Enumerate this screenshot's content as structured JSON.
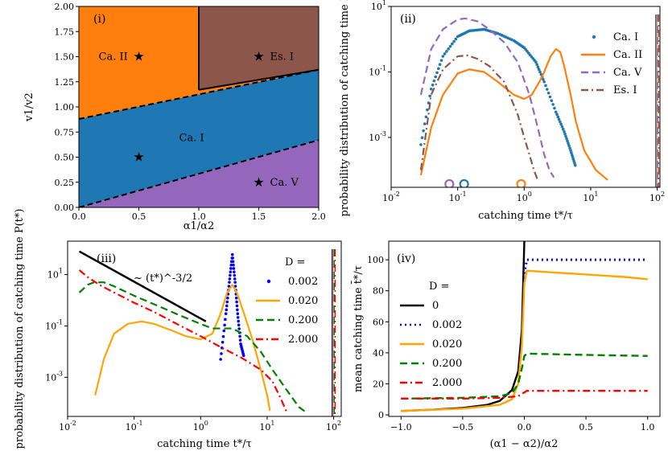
{
  "chart_data": [
    {
      "panel": "(i)",
      "type": "phase-diagram",
      "xlabel": "α1/α2",
      "ylabel": "v1/v2",
      "xlim": [
        0,
        2
      ],
      "ylim": [
        0,
        2
      ],
      "xticks": [
        "0.0",
        "0.5",
        "1.0",
        "1.5",
        "2.0"
      ],
      "yticks": [
        "0.00",
        "0.25",
        "0.50",
        "0.75",
        "1.00",
        "1.25",
        "1.50",
        "1.75",
        "2.00"
      ],
      "regions": [
        {
          "name": "Ca. II",
          "color": "#ff7f0e",
          "marker": [
            0.5,
            1.5
          ]
        },
        {
          "name": "Es. I",
          "color": "#8c564b",
          "marker": [
            1.5,
            1.5
          ]
        },
        {
          "name": "Ca. I",
          "color": "#1f77b4",
          "marker": [
            0.5,
            0.5
          ]
        },
        {
          "name": "Ca. V",
          "color": "#9467bd",
          "marker": [
            1.5,
            0.25
          ]
        }
      ],
      "boundaries": {
        "upper_dashed": [
          [
            0,
            0.88
          ],
          [
            2,
            1.37
          ]
        ],
        "lower_dashed": [
          [
            0,
            0
          ],
          [
            2,
            0.67
          ]
        ],
        "vertical_solid": [
          [
            1,
            1.17
          ],
          [
            1,
            2
          ]
        ],
        "es_lower_solid": [
          [
            1,
            1.17
          ],
          [
            2,
            1.37
          ]
        ]
      }
    },
    {
      "panel": "(ii)",
      "type": "line",
      "xlabel": "catching time t*/τ",
      "ylabel": "probability distribution of catching time P(t*)",
      "xscale": "log",
      "yscale": "log",
      "xlim": [
        0.01,
        110
      ],
      "ylim": [
        3e-05,
        10
      ],
      "xticks": [
        "10^-2",
        "10^-1",
        "10^0",
        "10^1",
        "10^2"
      ],
      "yticks": [
        "10^-3",
        "10^-1",
        "10^1"
      ],
      "series": [
        {
          "name": "Ca. I",
          "style": "dots",
          "color": "#1f77b4",
          "x": [
            0.028,
            0.04,
            0.06,
            0.1,
            0.15,
            0.25,
            0.4,
            0.7,
            1.0,
            1.5,
            2.0,
            3.0,
            4.0,
            5.0,
            6.0
          ],
          "y": [
            0.0006,
            0.03,
            0.3,
            1.2,
            1.8,
            2.0,
            1.5,
            0.9,
            0.55,
            0.2,
            0.05,
            0.006,
            0.0015,
            0.0004,
            0.00012
          ]
        },
        {
          "name": "Ca. II",
          "style": "solid",
          "color": "#ff7f0e",
          "x": [
            0.028,
            0.04,
            0.06,
            0.1,
            0.15,
            0.25,
            0.4,
            0.7,
            1.0,
            1.3,
            1.7,
            2.0,
            2.5,
            3.0,
            3.5,
            4.0,
            5.0,
            6.0,
            8.0,
            12.0,
            18.0
          ],
          "y": [
            7e-05,
            0.002,
            0.02,
            0.09,
            0.12,
            0.1,
            0.05,
            0.02,
            0.015,
            0.02,
            0.05,
            0.1,
            0.3,
            0.5,
            0.4,
            0.15,
            0.02,
            0.003,
            0.0004,
            0.0001,
            5e-05
          ]
        },
        {
          "name": "Ca. V",
          "style": "dashed",
          "color": "#9467bd",
          "x": [
            0.028,
            0.04,
            0.06,
            0.1,
            0.13,
            0.2,
            0.3,
            0.5,
            0.8,
            1.2,
            1.6,
            2.0,
            2.4,
            2.8
          ],
          "y": [
            0.02,
            0.5,
            2.0,
            4.0,
            4.3,
            3.5,
            2.0,
            0.8,
            0.2,
            0.02,
            0.002,
            0.0003,
            0.0001,
            6e-05
          ]
        },
        {
          "name": "Es. I",
          "style": "dashdot",
          "color": "#8c564b",
          "x": [
            0.028,
            0.04,
            0.06,
            0.1,
            0.14,
            0.2,
            0.3,
            0.5,
            0.8,
            1.0,
            1.2,
            1.4,
            1.6
          ],
          "y": [
            0.0001,
            0.02,
            0.12,
            0.3,
            0.32,
            0.25,
            0.15,
            0.05,
            0.005,
            0.001,
            0.0003,
            0.0001,
            5e-05
          ]
        }
      ],
      "circle_markers": [
        {
          "x": 0.075,
          "color": "#9467bd"
        },
        {
          "x": 0.125,
          "color": "#1f77b4"
        },
        {
          "x": 0.9,
          "color": "#ff7f0e"
        }
      ],
      "edge_x": 100
    },
    {
      "panel": "(iii)",
      "type": "line",
      "xlabel": "catching time t*/τ",
      "ylabel": "probability distribution of catching time P(t*)",
      "xscale": "log",
      "yscale": "log",
      "xlim": [
        0.01,
        130
      ],
      "ylim": [
        3e-05,
        200
      ],
      "xticks": [
        "10^-2",
        "10^-1",
        "10^0",
        "10^1",
        "10^2"
      ],
      "yticks": [
        "10^-3",
        "10^-1",
        "10^1"
      ],
      "legend_title": "D =",
      "series": [
        {
          "name": "0.002",
          "style": "dots",
          "color": "#0000ff",
          "x": [
            2.0,
            2.4,
            2.7,
            3.0,
            3.3,
            3.6,
            4.0,
            4.5
          ],
          "y": [
            0.005,
            0.3,
            5.0,
            60.0,
            5.0,
            0.3,
            0.02,
            0.006
          ]
        },
        {
          "name": "0.020",
          "style": "solid",
          "color": "#ffa500",
          "x": [
            0.026,
            0.035,
            0.05,
            0.08,
            0.13,
            0.2,
            0.35,
            0.6,
            1.0,
            1.5,
            2.0,
            2.5,
            3.0,
            3.5,
            4.5,
            6.0,
            8.0,
            10.0,
            11.0
          ],
          "y": [
            0.0002,
            0.005,
            0.05,
            0.12,
            0.15,
            0.12,
            0.07,
            0.04,
            0.03,
            0.05,
            0.3,
            2.0,
            4.0,
            2.0,
            0.3,
            0.03,
            0.002,
            0.0002,
            5e-05
          ]
        },
        {
          "name": "0.200",
          "style": "dashed",
          "color": "#008000",
          "x": [
            0.015,
            0.02,
            0.025,
            0.035,
            0.05,
            0.1,
            0.2,
            0.5,
            1.0,
            1.5,
            2.0,
            3.0,
            5.0,
            8.0,
            12.0,
            20.0,
            30.0,
            40.0
          ],
          "y": [
            2.0,
            4.0,
            5.0,
            5.0,
            3.5,
            1.5,
            0.7,
            0.25,
            0.12,
            0.08,
            0.08,
            0.08,
            0.04,
            0.01,
            0.002,
            0.0003,
            7e-05,
            4e-05
          ]
        },
        {
          "name": "2.000",
          "style": "dashdot",
          "color": "#ff0000",
          "x": [
            0.015,
            0.02,
            0.03,
            0.05,
            0.1,
            0.2,
            0.5,
            1.0,
            2.0,
            4.0,
            8.0,
            12.0,
            16.0,
            20.0
          ],
          "y": [
            15.0,
            8.0,
            4.0,
            2.0,
            0.8,
            0.35,
            0.1,
            0.04,
            0.015,
            0.006,
            0.002,
            0.0007,
            0.00015,
            4e-05
          ]
        }
      ],
      "guide_line": {
        "x": [
          0.015,
          1.2
        ],
        "y": [
          80.0,
          0.15
        ]
      },
      "guide_label": "~ (t*)^-3/2",
      "edge_x": 100
    },
    {
      "panel": "(iv)",
      "type": "line",
      "xlabel": "(α1 − α2)/α2",
      "ylabel": "mean catching time t̄*/τ",
      "xlim": [
        -1.1,
        1.1
      ],
      "ylim": [
        -1,
        112
      ],
      "xticks": [
        "−1.0",
        "−0.5",
        "0.0",
        "0.5",
        "1.0"
      ],
      "xtick_values": [
        -1.0,
        -0.5,
        0.0,
        0.5,
        1.0
      ],
      "yticks": [
        "0",
        "20",
        "40",
        "60",
        "80",
        "100"
      ],
      "ytick_values": [
        0,
        20,
        40,
        60,
        80,
        100
      ],
      "legend_title": "D =",
      "series": [
        {
          "name": "0",
          "style": "solid",
          "color": "#000000",
          "x": [
            -1.0,
            -0.75,
            -0.5,
            -0.3,
            -0.2,
            -0.1,
            -0.05,
            -0.02,
            0.0
          ],
          "y": [
            2.5,
            3.3,
            4.5,
            6.5,
            9.0,
            16.0,
            28.0,
            55.0,
            112.0
          ]
        },
        {
          "name": "0.002",
          "style": "dotted",
          "color": "#0000ff",
          "x": [
            0.0,
            0.02,
            0.5,
            1.0
          ],
          "y": [
            91.0,
            100.0,
            100.0,
            100.0
          ]
        },
        {
          "name": "0.020",
          "style": "solid",
          "color": "#ffa500",
          "x": [
            -1.0,
            -0.5,
            -0.2,
            -0.1,
            -0.05,
            -0.02,
            0.0,
            0.02,
            0.2,
            0.5,
            0.8,
            1.0
          ],
          "y": [
            2.5,
            4.0,
            6.5,
            10.0,
            20.0,
            45.0,
            85.0,
            93.0,
            92.0,
            90.5,
            89.0,
            87.5
          ]
        },
        {
          "name": "0.200",
          "style": "dashed",
          "color": "#008000",
          "x": [
            -1.0,
            -0.5,
            -0.2,
            -0.1,
            -0.05,
            -0.02,
            0.0,
            0.02,
            0.3,
            0.6,
            1.0
          ],
          "y": [
            10.5,
            11.0,
            12.0,
            14.0,
            20.0,
            30.0,
            38.0,
            39.5,
            39.0,
            38.5,
            38.0
          ]
        },
        {
          "name": "2.000",
          "style": "dashdot",
          "color": "#ff0000",
          "x": [
            -1.0,
            -0.5,
            -0.2,
            -0.05,
            0.0,
            0.02,
            0.3,
            0.6,
            1.0
          ],
          "y": [
            10.5,
            10.5,
            11.0,
            12.0,
            14.5,
            15.5,
            15.5,
            15.5,
            15.5
          ]
        }
      ]
    }
  ]
}
